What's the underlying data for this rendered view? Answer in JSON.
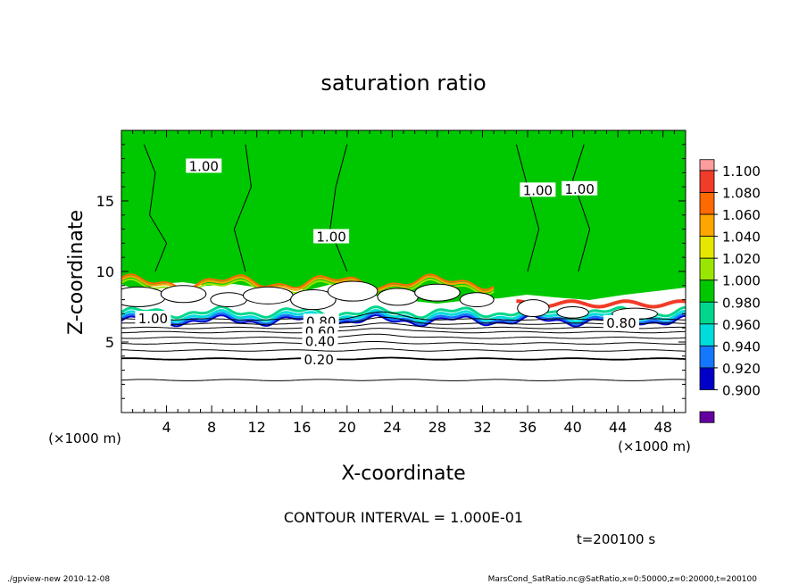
{
  "chart_data": {
    "type": "heatmap",
    "title": "saturation ratio",
    "xlabel": "X-coordinate",
    "ylabel": "Z-coordinate",
    "x_unit": "(×1000 m)",
    "y_unit": "(×1000 m)",
    "xlim": [
      0,
      50
    ],
    "ylim": [
      0,
      20
    ],
    "x_ticks": [
      4,
      8,
      12,
      16,
      20,
      24,
      28,
      32,
      36,
      40,
      44,
      48
    ],
    "y_ticks": [
      5,
      10,
      15
    ],
    "contour_interval": "CONTOUR INTERVAL = 1.000E-01",
    "time_label": "t=200100 s",
    "footer_left": "./gpview-new   2010-12-08",
    "footer_right": "MarsCond_SatRatio.nc@SatRatio,x=0:50000,z=0:20000,t=200100",
    "colorbar": {
      "levels": [
        "1.100",
        "1.080",
        "1.060",
        "1.040",
        "1.020",
        "1.000",
        "0.980",
        "0.960",
        "0.940",
        "0.920",
        "0.900"
      ],
      "colors": [
        "#ff9c9c",
        "#f03c28",
        "#ff6a00",
        "#ffa500",
        "#e6e600",
        "#9be600",
        "#00c800",
        "#00d78c",
        "#00dcdc",
        "#1478ff",
        "#0000c8",
        "#6400a0"
      ]
    },
    "contour_labels": [
      {
        "text": "1.00",
        "x": 7.3,
        "z": 17.5
      },
      {
        "text": "1.00",
        "x": 18.6,
        "z": 12.5
      },
      {
        "text": "1.00",
        "x": 36.9,
        "z": 15.8
      },
      {
        "text": "1.00",
        "x": 40.6,
        "z": 15.9
      },
      {
        "text": "1.00",
        "x": 2.8,
        "z": 6.7
      },
      {
        "text": "0.80",
        "x": 17.7,
        "z": 6.5
      },
      {
        "text": "0.60",
        "x": 17.6,
        "z": 5.8
      },
      {
        "text": "0.40",
        "x": 17.6,
        "z": 5.1
      },
      {
        "text": "0.20",
        "x": 17.5,
        "z": 3.8
      },
      {
        "text": "0.80",
        "x": 44.3,
        "z": 6.4
      }
    ],
    "iso_lines_z": [
      2.3,
      3.8,
      4.4,
      4.9,
      5.3,
      5.7,
      6.0,
      6.3,
      6.6
    ]
  }
}
